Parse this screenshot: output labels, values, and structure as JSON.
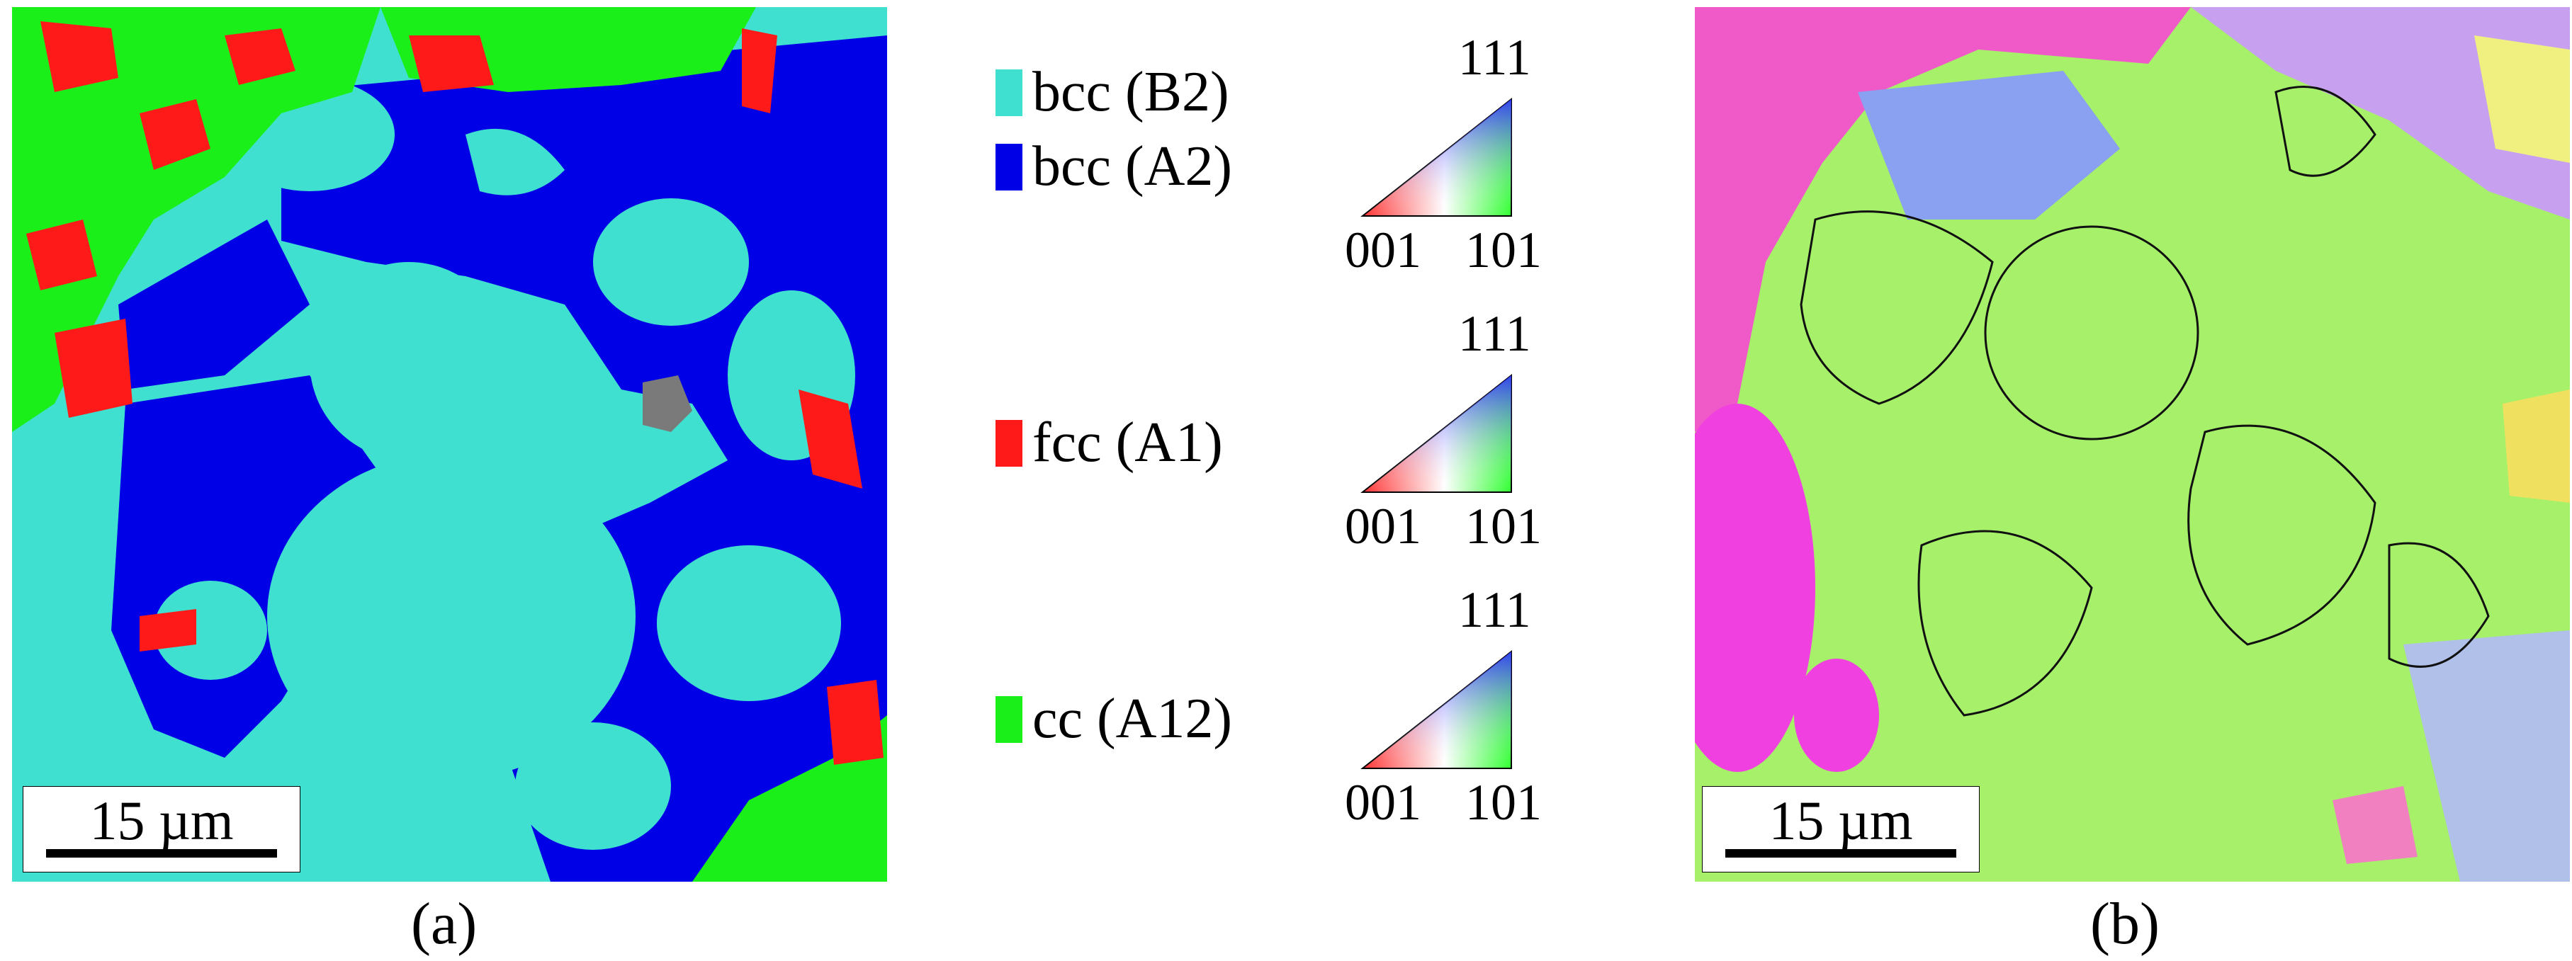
{
  "panel_a": {
    "label": "(a)",
    "scale_bar": "15 µm"
  },
  "panel_b": {
    "label": "(b)",
    "scale_bar": "15 µm"
  },
  "legend": [
    {
      "label": "bcc (B2)",
      "color": "#40e0d0"
    },
    {
      "label": "bcc (A2)",
      "color": "#0000e6"
    },
    {
      "label": "fcc (A1)",
      "color": "#ff1a1a"
    },
    {
      "label": "cc (A12)",
      "color": "#1aef1a"
    }
  ],
  "ipf_keys": [
    {
      "top": "111",
      "bottom_left": "001",
      "bottom_right": "101"
    },
    {
      "top": "111",
      "bottom_left": "001",
      "bottom_right": "101"
    },
    {
      "top": "111",
      "bottom_left": "001",
      "bottom_right": "101"
    }
  ]
}
